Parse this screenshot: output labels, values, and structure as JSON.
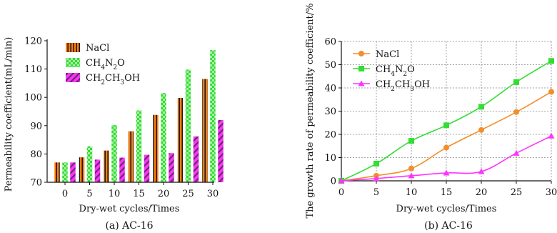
{
  "chart_data": [
    {
      "type": "bar",
      "caption": "(a)  AC-16",
      "xlabel": "Dry-wet cycles/Times",
      "ylabel": "Permeability coefficient(mL/min)",
      "categories": [
        "0",
        "5",
        "10",
        "15",
        "20",
        "25",
        "30"
      ],
      "ylim": [
        70,
        120
      ],
      "yticks": [
        70,
        80,
        90,
        100,
        110,
        120
      ],
      "grid": false,
      "legend_position": "top-left",
      "series": [
        {
          "name": "NaCl",
          "legend_main": "NaCl",
          "legend_sub": [],
          "color": "#ff7f0e",
          "pattern": "vertical-stripes",
          "values": [
            77.0,
            78.8,
            81.2,
            88.0,
            93.8,
            99.8,
            106.5
          ]
        },
        {
          "name": "CH4N2O",
          "legend_main": "CH",
          "legend_sub": [
            "4",
            "N",
            "2",
            "O"
          ],
          "color": "#33dd33",
          "pattern": "checker",
          "values": [
            77.0,
            82.7,
            90.2,
            95.4,
            101.5,
            109.8,
            116.7
          ]
        },
        {
          "name": "CH2CH3OH",
          "legend_main": "CH",
          "legend_sub": [
            "2",
            "CH",
            "3",
            "OH"
          ],
          "color": "#ff33ff",
          "pattern": "diagonal-stripes",
          "values": [
            77.0,
            78.0,
            78.7,
            79.7,
            80.3,
            86.2,
            92.0
          ]
        }
      ]
    },
    {
      "type": "line",
      "caption": "(b)  AC-16",
      "xlabel": "Dry-wet cycles/Times",
      "ylabel": "The growth rate of permeability coefficient/%",
      "x": [
        0,
        5,
        10,
        15,
        20,
        25,
        30
      ],
      "xlim": [
        0,
        30
      ],
      "ylim": [
        0,
        60
      ],
      "yticks": [
        0,
        10,
        20,
        30,
        40,
        50,
        60
      ],
      "grid": true,
      "legend_position": "top-left",
      "series": [
        {
          "name": "NaCl",
          "legend_main": "NaCl",
          "legend_sub": [],
          "color": "#f28e2b",
          "marker": "circle",
          "values": [
            0,
            2.2,
            5.3,
            14.3,
            21.9,
            29.6,
            38.3
          ]
        },
        {
          "name": "CH4N2O",
          "legend_main": "CH",
          "legend_sub": [
            "4",
            "N",
            "2",
            "O"
          ],
          "color": "#33dd33",
          "marker": "square",
          "values": [
            0,
            7.4,
            17.2,
            23.9,
            31.9,
            42.5,
            51.6
          ]
        },
        {
          "name": "CH2CH3OH",
          "legend_main": "CH",
          "legend_sub": [
            "2",
            "CH",
            "3",
            "OH"
          ],
          "color": "#ff33ff",
          "marker": "triangle",
          "values": [
            0,
            1.0,
            2.2,
            3.4,
            4.0,
            11.9,
            19.3
          ]
        }
      ]
    }
  ]
}
